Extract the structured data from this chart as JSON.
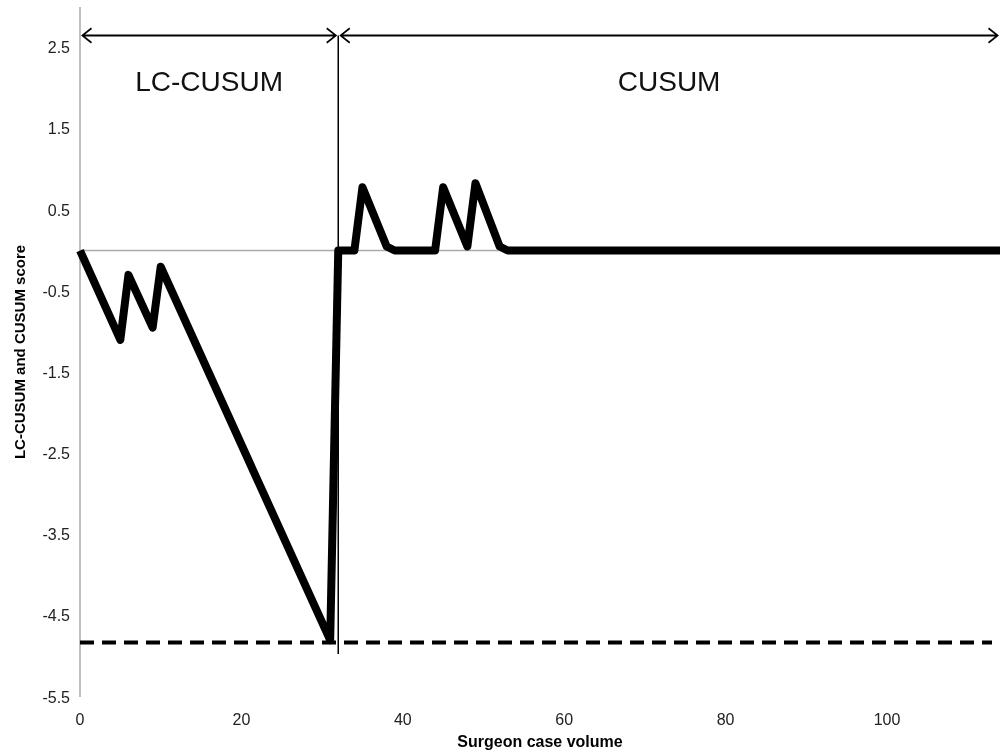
{
  "chart_data": {
    "type": "line",
    "xlabel": "Surgeon case volume",
    "ylabel": "LC-CUSUM and CUSUM score",
    "x": [
      0,
      5,
      6,
      9,
      10,
      31,
      32,
      34,
      35,
      38,
      39,
      44,
      45,
      48,
      49,
      52,
      53,
      114
    ],
    "series": [
      {
        "color": "#000000",
        "values": [
          0,
          -1.1,
          -0.3,
          -0.95,
          -0.2,
          -4.8,
          0,
          0,
          0.78,
          0.05,
          0,
          0,
          0.78,
          0.05,
          0.83,
          0.05,
          0,
          0
        ]
      }
    ],
    "xlim": [
      0,
      114
    ],
    "xticks": [
      0,
      20,
      40,
      60,
      80,
      100
    ],
    "ylim": [
      -5.5,
      3.0
    ],
    "yticks": [
      -5.5,
      -4.5,
      -3.5,
      -2.5,
      -1.5,
      -0.5,
      0.5,
      1.5,
      2.5
    ],
    "grid": false,
    "marker": "none",
    "line_style": "solid",
    "ref_lines": [
      {
        "axis": "x",
        "value": 32,
        "color": "#000000",
        "line_style": "solid"
      },
      {
        "axis": "y",
        "value": -4.83,
        "color": "#000000",
        "line_style": "dashed"
      }
    ],
    "annotations": [
      "LC-CUSUM",
      "CUSUM"
    ]
  }
}
